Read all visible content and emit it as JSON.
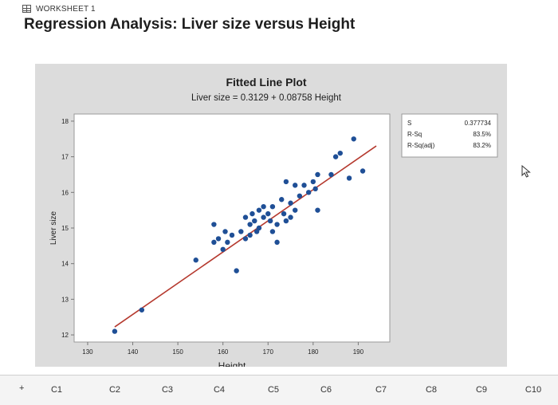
{
  "worksheet": {
    "label": "WORKSHEET 1",
    "icon": "worksheet-grid-icon"
  },
  "page": {
    "title": "Regression Analysis: Liver size versus Height"
  },
  "plot": {
    "title": "Fitted Line Plot",
    "equation": "Liver size = 0.3129 + 0.08758 Height",
    "stats": [
      {
        "label": "S",
        "value": "0.377734"
      },
      {
        "label": "R-Sq",
        "value": "83.5%"
      },
      {
        "label": "R-Sq(adj)",
        "value": "83.2%"
      }
    ],
    "colors": {
      "points": "#1f4f96",
      "line": "#b5392e",
      "frame": "#dcdcdc"
    }
  },
  "chart_data": {
    "type": "scatter",
    "title": "Fitted Line Plot",
    "subtitle": "Liver size = 0.3129 + 0.08758 Height",
    "xlabel": "Height",
    "ylabel": "Liver size",
    "xlim": [
      127,
      197
    ],
    "ylim": [
      11.8,
      18.2
    ],
    "xticks": [
      130,
      140,
      150,
      160,
      170,
      180,
      190
    ],
    "yticks": [
      12,
      13,
      14,
      15,
      16,
      17,
      18
    ],
    "fit_line": {
      "intercept": 0.3129,
      "slope": 0.08758,
      "x_range": [
        136,
        194
      ]
    },
    "points": [
      [
        136,
        12.1
      ],
      [
        142,
        12.7
      ],
      [
        154,
        14.1
      ],
      [
        158,
        14.6
      ],
      [
        158,
        15.1
      ],
      [
        159,
        14.7
      ],
      [
        160,
        14.4
      ],
      [
        160.5,
        14.9
      ],
      [
        161,
        14.6
      ],
      [
        162,
        14.8
      ],
      [
        163,
        13.8
      ],
      [
        164,
        14.9
      ],
      [
        165,
        14.7
      ],
      [
        165,
        15.3
      ],
      [
        166,
        14.8
      ],
      [
        166,
        15.1
      ],
      [
        166.5,
        15.4
      ],
      [
        167,
        15.2
      ],
      [
        167.5,
        14.9
      ],
      [
        168,
        15.0
      ],
      [
        168,
        15.5
      ],
      [
        169,
        15.3
      ],
      [
        169,
        15.6
      ],
      [
        170,
        15.4
      ],
      [
        170.5,
        15.2
      ],
      [
        171,
        14.9
      ],
      [
        171,
        15.6
      ],
      [
        172,
        14.6
      ],
      [
        172,
        15.1
      ],
      [
        173,
        15.8
      ],
      [
        173.5,
        15.4
      ],
      [
        174,
        15.2
      ],
      [
        174,
        16.3
      ],
      [
        175,
        15.3
      ],
      [
        175,
        15.7
      ],
      [
        176,
        15.5
      ],
      [
        176,
        16.2
      ],
      [
        177,
        15.9
      ],
      [
        178,
        16.2
      ],
      [
        179,
        16.0
      ],
      [
        180,
        16.3
      ],
      [
        180.5,
        16.1
      ],
      [
        181,
        15.5
      ],
      [
        181,
        16.5
      ],
      [
        184,
        16.5
      ],
      [
        185,
        17.0
      ],
      [
        186,
        17.1
      ],
      [
        188,
        16.4
      ],
      [
        189,
        17.5
      ],
      [
        191,
        16.6
      ]
    ]
  },
  "grid": {
    "columns": [
      "C1",
      "C2",
      "C3",
      "C4",
      "C5",
      "C6",
      "C7",
      "C8",
      "C9",
      "C10"
    ],
    "row_arrow": "+"
  }
}
